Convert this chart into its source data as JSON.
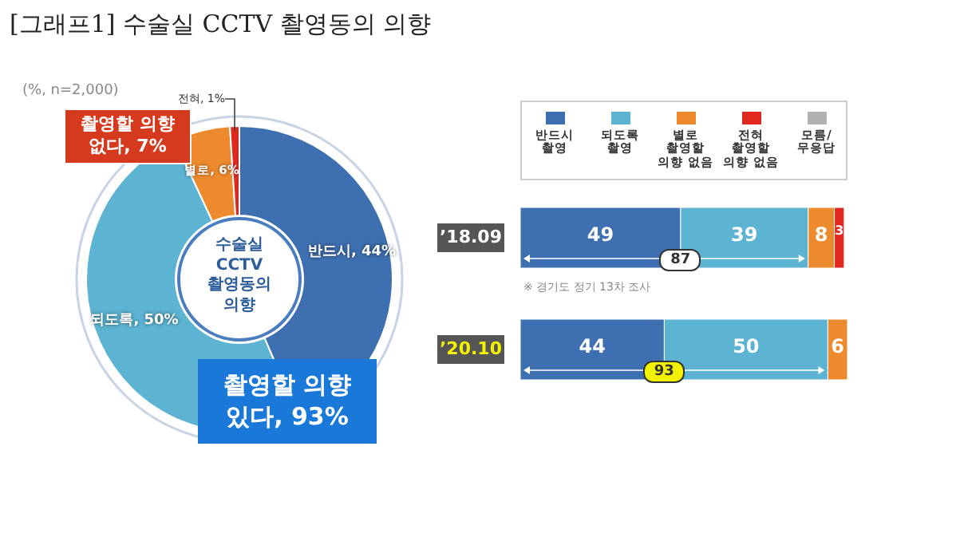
{
  "chart_data": [
    {
      "type": "donut",
      "title": "[그래프1] 수술실 CCTV 촬영동의 의향",
      "subtitle": "(%, n=2,000)",
      "categories": [
        "반드시",
        "되도록",
        "별로",
        "전혀"
      ],
      "values": [
        44,
        50,
        6,
        1
      ],
      "colors": [
        "#3e6fb0",
        "#5cb4d2",
        "#ee8a2e",
        "#e0281e"
      ],
      "value_labels": [
        "44%",
        "50%",
        "6%",
        "1%"
      ],
      "annotations": [
        "수술실 CCTV 촬영동의 의향",
        "촬영할 의향 없다, 7%",
        "촬영할 의향 있다, 93%"
      ]
    },
    {
      "type": "bar",
      "orientation": "horizontal",
      "stacked": true,
      "categories": [
        "’18.09",
        "’20.10"
      ],
      "legend": "top",
      "data_labels": true,
      "series": [
        {
          "name": "반드시 촬영",
          "color": "#3e6fb0",
          "values": [
            49,
            44
          ]
        },
        {
          "name": "되도록 촬영",
          "color": "#5cb4d2",
          "values": [
            39,
            50
          ]
        },
        {
          "name": "별로 촬영할 의향 없음",
          "color": "#ee8a2e",
          "values": [
            8,
            6
          ]
        },
        {
          "name": "전혀 촬영할 의향 없음",
          "color": "#e0281e",
          "values": [
            3,
            null
          ]
        },
        {
          "name": "모름/무응답",
          "color": "#b0b0b0",
          "values": [
            null,
            null
          ]
        }
      ],
      "annotations": [
        "※ 경기도 정기 13차 조사",
        "87",
        "93"
      ]
    }
  ]
}
